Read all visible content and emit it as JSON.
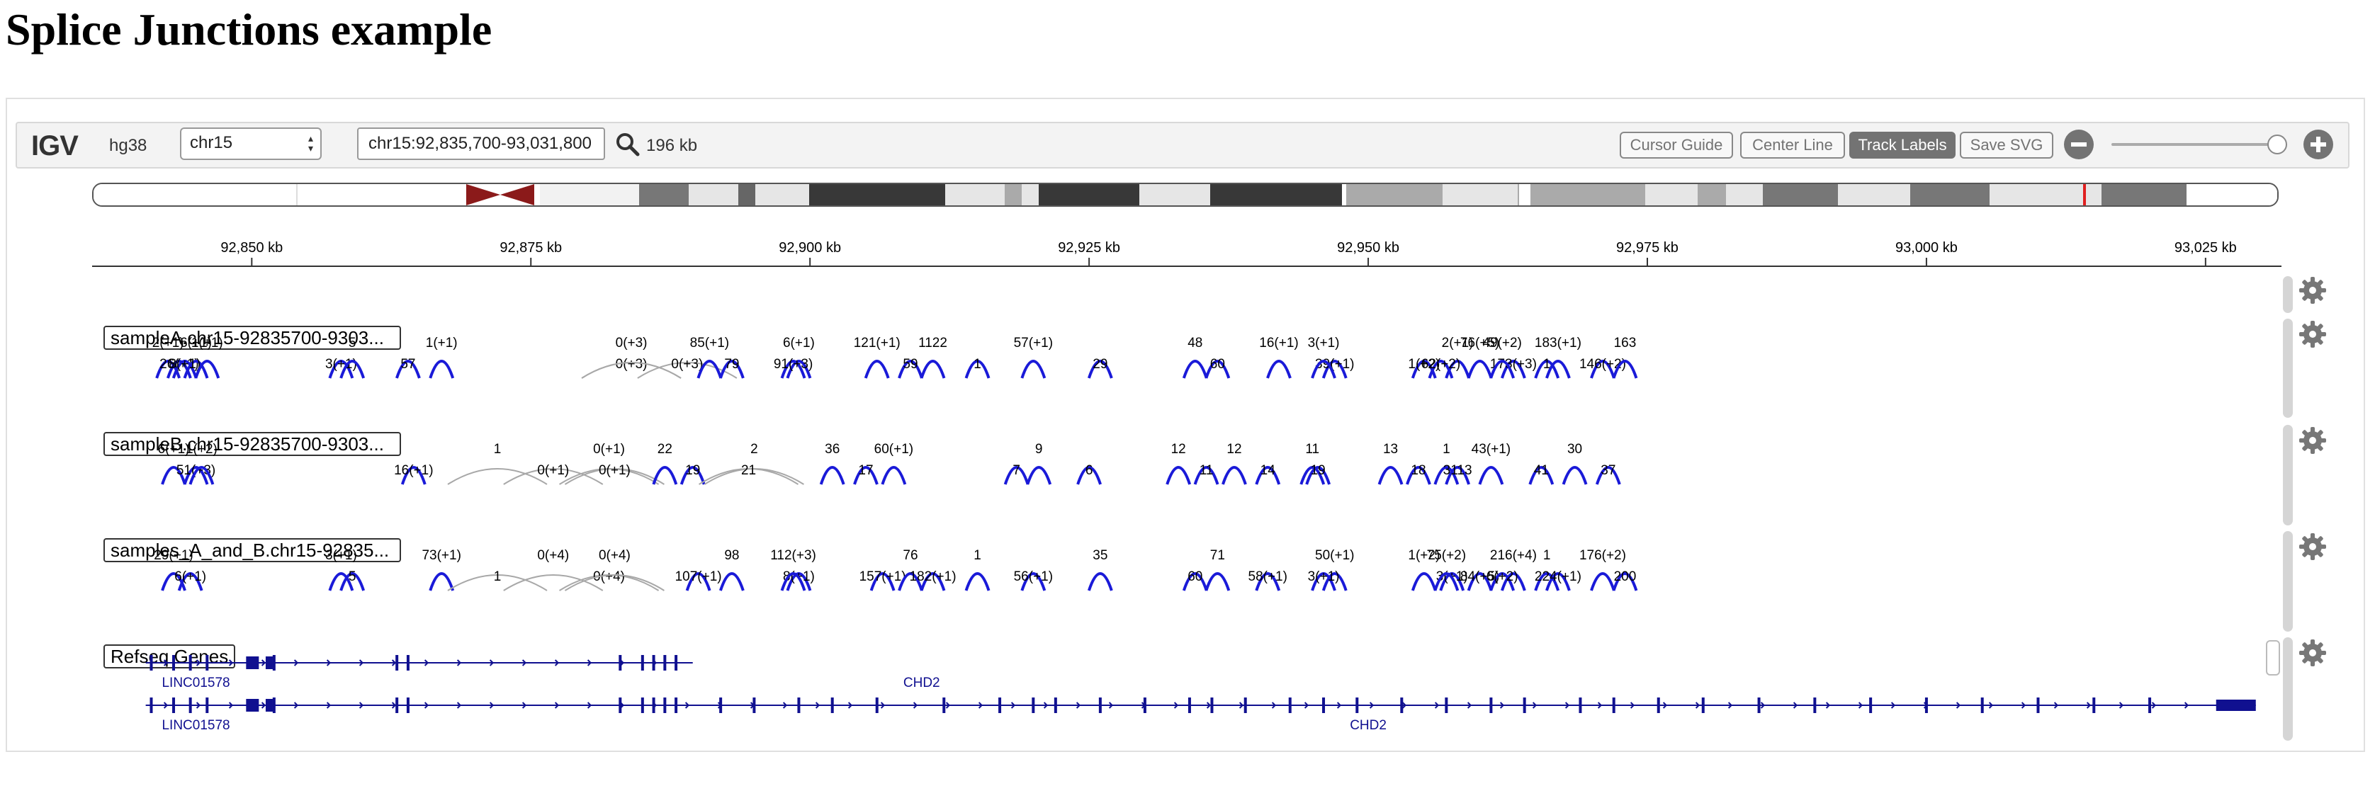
{
  "page": {
    "title": "Splice Junctions example"
  },
  "navbar": {
    "logo": "IGV",
    "genome": "hg38",
    "chromosome": "chr15",
    "locus": "chr15:92,835,700-93,031,800",
    "window_size": "196 kb",
    "buttons": {
      "cursor_guide": "Cursor Guide",
      "center_line": "Center Line",
      "track_labels": "Track Labels",
      "save_svg": "Save SVG"
    },
    "zoom_level": 0.92
  },
  "ruler": {
    "range_kb": [
      92835.7,
      93031.8
    ],
    "ticks": [
      {
        "kb": 92850,
        "label": "92,850 kb"
      },
      {
        "kb": 92875,
        "label": "92,875 kb"
      },
      {
        "kb": 92900,
        "label": "92,900 kb"
      },
      {
        "kb": 92925,
        "label": "92,925 kb"
      },
      {
        "kb": 92950,
        "label": "92,950 kb"
      },
      {
        "kb": 92975,
        "label": "92,975 kb"
      },
      {
        "kb": 93000,
        "label": "93,000 kb"
      },
      {
        "kb": 93025,
        "label": "93,025 kb"
      }
    ]
  },
  "colors": {
    "junction_plus": "#1a1ad8",
    "junction_minus": "#a8a8a8",
    "gene": "#101090",
    "centromere": "#8b1a1a"
  },
  "tracks": [
    {
      "label": "sampleA.chr15-92835700-9303...",
      "junctions": [
        {
          "kb": 92842.5,
          "text": "2(+1)",
          "strand": "+"
        },
        {
          "kb": 92843.5,
          "text": "26(+1)",
          "strand": "+"
        },
        {
          "kb": 92845,
          "text": "6(+1)",
          "strand": "+"
        },
        {
          "kb": 92844,
          "text": "8(+1)",
          "strand": "+"
        },
        {
          "kb": 92846,
          "text": "1(+1)",
          "strand": "+"
        },
        {
          "kb": 92858,
          "text": "3(+1)",
          "strand": "+"
        },
        {
          "kb": 92859,
          "text": "5",
          "strand": "+"
        },
        {
          "kb": 92864,
          "text": "57",
          "strand": "+"
        },
        {
          "kb": 92867,
          "text": "1(+1)",
          "strand": "+"
        },
        {
          "kb": 92884,
          "text": "0(+3)",
          "strand": "-"
        },
        {
          "kb": 92884,
          "text": "0(+3)",
          "strand": "-"
        },
        {
          "kb": 92889,
          "text": "0(+3)",
          "strand": "-"
        },
        {
          "kb": 92891,
          "text": "85(+1)",
          "strand": "+"
        },
        {
          "kb": 92893,
          "text": "79",
          "strand": "+"
        },
        {
          "kb": 92899,
          "text": "6(+1)",
          "strand": "+"
        },
        {
          "kb": 92898.5,
          "text": "91(+3)",
          "strand": "+"
        },
        {
          "kb": 92906,
          "text": "121(+1)",
          "strand": "+"
        },
        {
          "kb": 92909,
          "text": "59",
          "strand": "+"
        },
        {
          "kb": 92911,
          "text": "1122",
          "strand": "+"
        },
        {
          "kb": 92915,
          "text": "1",
          "strand": "+"
        },
        {
          "kb": 92920,
          "text": "57(+1)",
          "strand": "+"
        },
        {
          "kb": 92926,
          "text": "29",
          "strand": "+"
        },
        {
          "kb": 92934.5,
          "text": "48",
          "strand": "+"
        },
        {
          "kb": 92936.5,
          "text": "60",
          "strand": "+"
        },
        {
          "kb": 92942,
          "text": "16(+1)",
          "strand": "+"
        },
        {
          "kb": 92947,
          "text": "39(+1)",
          "strand": "+"
        },
        {
          "kb": 92946,
          "text": "3(+1)",
          "strand": "+"
        },
        {
          "kb": 92955,
          "text": "1(+2)",
          "strand": "+"
        },
        {
          "kb": 92958,
          "text": "2(+1)",
          "strand": "+"
        },
        {
          "kb": 92956.5,
          "text": "62(+2)",
          "strand": "+"
        },
        {
          "kb": 92960,
          "text": "76(+5)",
          "strand": "+"
        },
        {
          "kb": 92963,
          "text": "173(+3)",
          "strand": "+"
        },
        {
          "kb": 92962,
          "text": "49(+2)",
          "strand": "+"
        },
        {
          "kb": 92966,
          "text": "1",
          "strand": "+"
        },
        {
          "kb": 92967,
          "text": "183(+1)",
          "strand": "+"
        },
        {
          "kb": 92971,
          "text": "146(+2)",
          "strand": "+"
        },
        {
          "kb": 92973,
          "text": "163",
          "strand": "+"
        }
      ]
    },
    {
      "label": "sampleB.chr15-92835700-9303...",
      "junctions": [
        {
          "kb": 92843,
          "text": "6(+1)",
          "strand": "+"
        },
        {
          "kb": 92845,
          "text": "51(+3)",
          "strand": "+"
        },
        {
          "kb": 92845.5,
          "text": "1(+2)",
          "strand": "+"
        },
        {
          "kb": 92864.5,
          "text": "16(+1)",
          "strand": "+"
        },
        {
          "kb": 92872,
          "text": "1",
          "strand": "-"
        },
        {
          "kb": 92877,
          "text": "0(+1)",
          "strand": "-"
        },
        {
          "kb": 92882,
          "text": "0(+1)",
          "strand": "-"
        },
        {
          "kb": 92882.5,
          "text": "0(+1)",
          "strand": "-"
        },
        {
          "kb": 92887,
          "text": "22",
          "strand": "+"
        },
        {
          "kb": 92889.5,
          "text": "19",
          "strand": "+"
        },
        {
          "kb": 92895,
          "text": "2",
          "strand": "-"
        },
        {
          "kb": 92894.5,
          "text": "21",
          "strand": "-"
        },
        {
          "kb": 92902,
          "text": "36",
          "strand": "+"
        },
        {
          "kb": 92905,
          "text": "17",
          "strand": "+"
        },
        {
          "kb": 92907.5,
          "text": "60(+1)",
          "strand": "+"
        },
        {
          "kb": 92918.5,
          "text": "7",
          "strand": "+"
        },
        {
          "kb": 92920.5,
          "text": "9",
          "strand": "+"
        },
        {
          "kb": 92925,
          "text": "6",
          "strand": "+"
        },
        {
          "kb": 92933,
          "text": "12",
          "strand": "+"
        },
        {
          "kb": 92935.5,
          "text": "11",
          "strand": "+"
        },
        {
          "kb": 92938,
          "text": "12",
          "strand": "+"
        },
        {
          "kb": 92941,
          "text": "14",
          "strand": "+"
        },
        {
          "kb": 92945,
          "text": "11",
          "strand": "+"
        },
        {
          "kb": 92945.5,
          "text": "19",
          "strand": "+"
        },
        {
          "kb": 92952,
          "text": "13",
          "strand": "+"
        },
        {
          "kb": 92954.5,
          "text": "18",
          "strand": "+"
        },
        {
          "kb": 92957,
          "text": "1",
          "strand": "+"
        },
        {
          "kb": 92958,
          "text": "3113",
          "strand": "+"
        },
        {
          "kb": 92961,
          "text": "43(+1)",
          "strand": "+"
        },
        {
          "kb": 92965.5,
          "text": "41",
          "strand": "+"
        },
        {
          "kb": 92968.5,
          "text": "30",
          "strand": "+"
        },
        {
          "kb": 92971.5,
          "text": "37",
          "strand": "+"
        }
      ]
    },
    {
      "label": "samples_A_and_B.chr15-92835...",
      "junctions": [
        {
          "kb": 92843,
          "text": "29(+1)",
          "strand": "+"
        },
        {
          "kb": 92844.5,
          "text": "6(+1)",
          "strand": "+"
        },
        {
          "kb": 92858,
          "text": "3(+1)",
          "strand": "+"
        },
        {
          "kb": 92859,
          "text": "5",
          "strand": "+"
        },
        {
          "kb": 92867,
          "text": "73(+1)",
          "strand": "+"
        },
        {
          "kb": 92872,
          "text": "1",
          "strand": "-"
        },
        {
          "kb": 92877,
          "text": "0(+4)",
          "strand": "-"
        },
        {
          "kb": 92882,
          "text": "0(+4)",
          "strand": "-"
        },
        {
          "kb": 92882.5,
          "text": "0(+4)",
          "strand": "-"
        },
        {
          "kb": 92890,
          "text": "107(+1)",
          "strand": "+"
        },
        {
          "kb": 92893,
          "text": "98",
          "strand": "+"
        },
        {
          "kb": 92899,
          "text": "8(+1)",
          "strand": "+"
        },
        {
          "kb": 92898.5,
          "text": "112(+3)",
          "strand": "+"
        },
        {
          "kb": 92906.5,
          "text": "157(+1)",
          "strand": "+"
        },
        {
          "kb": 92909,
          "text": "76",
          "strand": "+"
        },
        {
          "kb": 92911,
          "text": "182(+1)",
          "strand": "+"
        },
        {
          "kb": 92915,
          "text": "1",
          "strand": "+"
        },
        {
          "kb": 92920,
          "text": "56(+1)",
          "strand": "+"
        },
        {
          "kb": 92926,
          "text": "35",
          "strand": "+"
        },
        {
          "kb": 92934.5,
          "text": "60",
          "strand": "+"
        },
        {
          "kb": 92936.5,
          "text": "71",
          "strand": "+"
        },
        {
          "kb": 92941,
          "text": "58(+1)",
          "strand": "+"
        },
        {
          "kb": 92947,
          "text": "50(+1)",
          "strand": "+"
        },
        {
          "kb": 92946,
          "text": "3(+1)",
          "strand": "+"
        },
        {
          "kb": 92955,
          "text": "1(+2)",
          "strand": "+"
        },
        {
          "kb": 92957.5,
          "text": "3(+1)",
          "strand": "+"
        },
        {
          "kb": 92957,
          "text": "75(+2)",
          "strand": "+"
        },
        {
          "kb": 92960,
          "text": "84(+5)",
          "strand": "+"
        },
        {
          "kb": 92963,
          "text": "216(+4)",
          "strand": "+"
        },
        {
          "kb": 92962,
          "text": "6(+2)",
          "strand": "+"
        },
        {
          "kb": 92966,
          "text": "1",
          "strand": "+"
        },
        {
          "kb": 92967,
          "text": "224(+1)",
          "strand": "+"
        },
        {
          "kb": 92971,
          "text": "176(+2)",
          "strand": "+"
        },
        {
          "kb": 92973,
          "text": "200",
          "strand": "+"
        }
      ]
    }
  ],
  "genes_track": {
    "label": "Refseq Genes",
    "transcripts": [
      {
        "row": 0,
        "start_kb": 92840.5,
        "end_kb": 92889.5,
        "genes": [
          {
            "name": "LINC01578",
            "kb": 92845
          },
          {
            "name": "CHD2",
            "kb": 92910
          }
        ]
      },
      {
        "row": 1,
        "start_kb": 92840.5,
        "end_kb": 93029.5,
        "genes": [
          {
            "name": "LINC01578",
            "kb": 92845
          },
          {
            "name": "CHD2",
            "kb": 92950
          }
        ]
      }
    ]
  }
}
